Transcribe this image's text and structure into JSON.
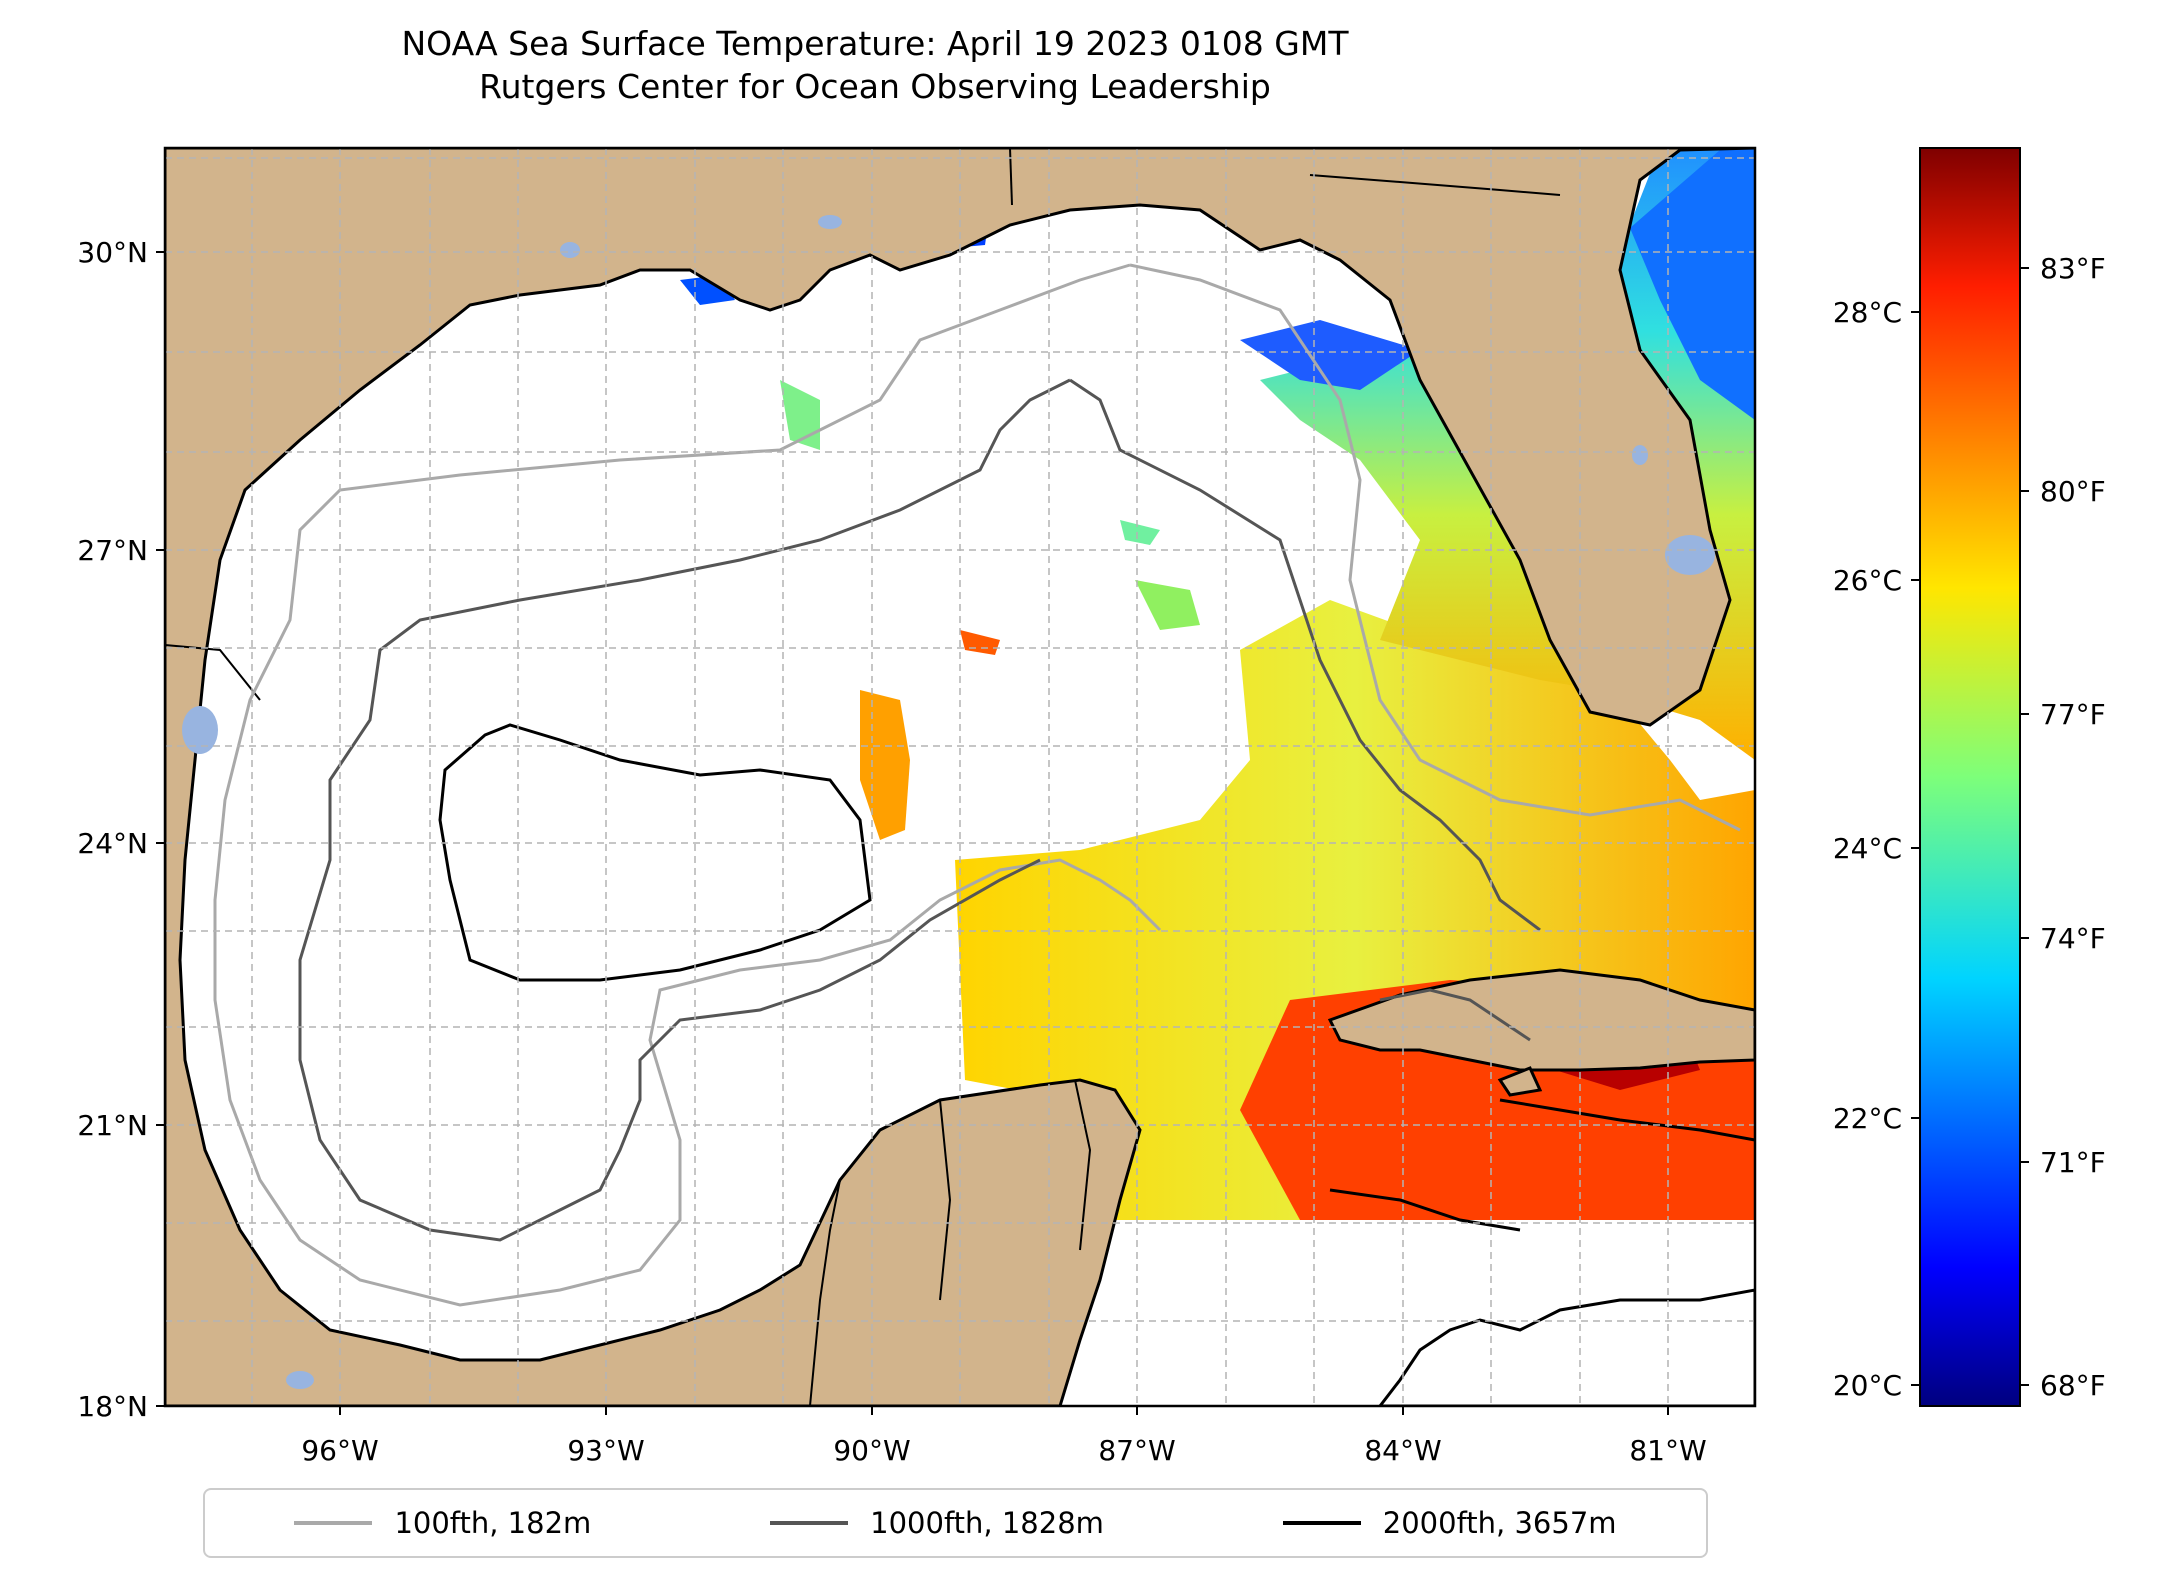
{
  "title": "NOAA Sea Surface Temperature: April 19 2023 0108 GMT",
  "subtitle": "Rutgers Center for Ocean Observing Leadership",
  "map": {
    "lon_range": [
      -98.2,
      -80.3
    ],
    "lat_range": [
      18.0,
      31.0
    ],
    "lat_ticks": [
      "18°N",
      "21°N",
      "24°N",
      "27°N",
      "30°N"
    ],
    "lon_ticks": [
      "96°W",
      "93°W",
      "90°W",
      "87°W",
      "84°W",
      "81°W"
    ],
    "grid": true,
    "land_color": "#d2b48c",
    "lake_color": "#98b4e0"
  },
  "colorbar": {
    "colormap": "jet",
    "celsius_ticks": [
      "20°C",
      "22°C",
      "24°C",
      "26°C",
      "28°C"
    ],
    "fahrenheit_ticks": [
      "68°F",
      "71°F",
      "74°F",
      "77°F",
      "80°F",
      "83°F"
    ],
    "range_f": [
      67.5,
      85
    ]
  },
  "legend": {
    "placement": "bottom",
    "entries": [
      {
        "label": "100fth, 182m",
        "color": "#a9a9a9"
      },
      {
        "label": "1000fth, 1828m",
        "color": "#555555"
      },
      {
        "label": "2000fth, 3657m",
        "color": "#000000"
      }
    ]
  }
}
